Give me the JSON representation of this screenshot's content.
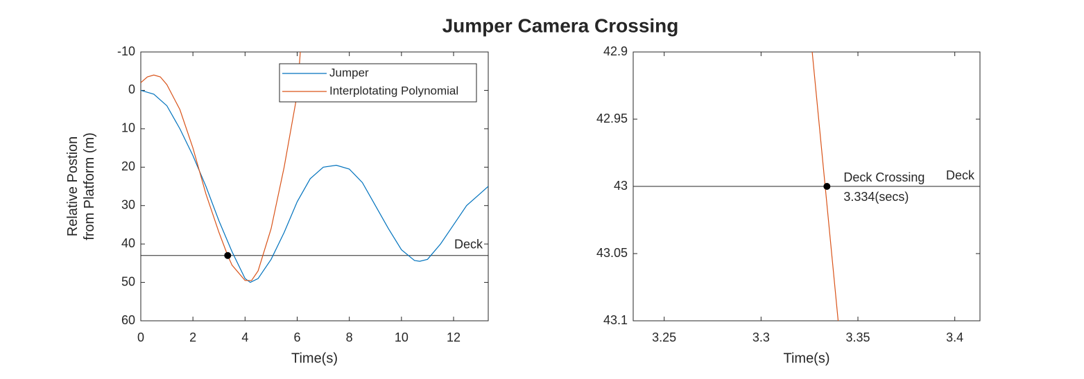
{
  "title": "Jumper Camera Crossing",
  "chart_data": [
    {
      "type": "line",
      "y_reversed": true,
      "legend": "top-right",
      "xlabel": "Time(s)",
      "ylabel": [
        "Relative Postion",
        "from Platform (m)"
      ],
      "xlim": [
        0,
        13.33
      ],
      "xticks": [
        0,
        2,
        4,
        6,
        8,
        10,
        12
      ],
      "ylim": [
        -10,
        60
      ],
      "yticks": [
        -10,
        0,
        10,
        20,
        30,
        40,
        50,
        60
      ],
      "series": [
        {
          "name": "Jumper",
          "color": "#0072bd",
          "x": [
            0,
            0.5,
            1,
            1.5,
            2,
            2.5,
            3,
            3.5,
            4,
            4.2,
            4.5,
            5,
            5.5,
            6,
            6.5,
            7,
            7.5,
            8,
            8.5,
            9,
            9.5,
            10,
            10.5,
            10.7,
            11,
            11.5,
            12,
            12.5,
            13,
            13.33
          ],
          "values": [
            0,
            1,
            4,
            10,
            17,
            25,
            34,
            42,
            49,
            50,
            49,
            44,
            37,
            29,
            23,
            20,
            19.5,
            20.5,
            24,
            30,
            36,
            41.5,
            44.3,
            44.5,
            44,
            40,
            35,
            30,
            27,
            25
          ]
        },
        {
          "name": "Interplotating Polynomial",
          "color": "#d95319",
          "x": [
            0,
            0.25,
            0.5,
            0.75,
            1,
            1.5,
            2,
            2.5,
            3,
            3.334,
            3.5,
            4,
            4.25,
            4.5,
            5,
            5.5,
            6,
            6.12
          ],
          "values": [
            -2,
            -3.5,
            -4,
            -3.5,
            -1.5,
            5,
            15,
            27,
            37,
            43,
            45.5,
            49.5,
            49.5,
            47,
            36,
            20,
            1,
            -10
          ]
        }
      ],
      "hline": {
        "value": 43,
        "label": "Deck"
      },
      "marker": {
        "x": 3.334,
        "y": 43
      }
    },
    {
      "type": "line",
      "y_reversed": true,
      "xlabel": "Time(s)",
      "xlim": [
        3.234,
        3.413
      ],
      "xticks": [
        3.25,
        3.3,
        3.35,
        3.4
      ],
      "ylim": [
        42.9,
        43.1
      ],
      "yticks": [
        42.9,
        42.95,
        43,
        43.05,
        43.1
      ],
      "series": [
        {
          "color": "#d95319",
          "x": [
            3.3264,
            3.3398
          ],
          "values": [
            42.9,
            43.1
          ]
        }
      ],
      "hline": {
        "value": 43,
        "label": "Deck"
      },
      "marker": {
        "x": 3.334,
        "y": 43
      },
      "annotation": [
        "Deck Crossing",
        "3.334(secs)"
      ]
    }
  ]
}
